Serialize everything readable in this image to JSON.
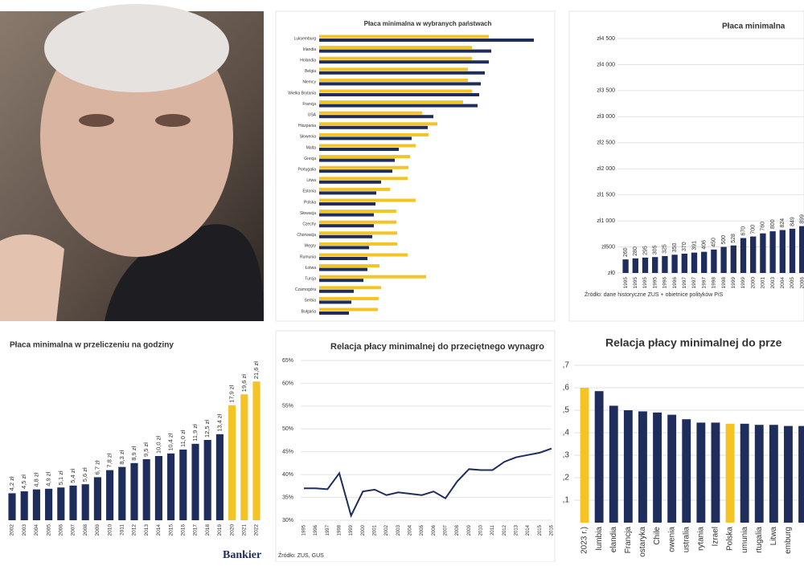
{
  "logo": "Bankier",
  "chart_data": [
    {
      "type": "bar",
      "horizontal": true,
      "title": "Płaca minimalna w wybranych państwach",
      "categories": [
        "Luksemburg",
        "Irlandia",
        "Holandia",
        "Belgia",
        "Niemcy",
        "Wielka Brytania",
        "Francja",
        "USA",
        "Hiszpania",
        "Słowenia",
        "Malta",
        "Grecja",
        "Portugalia",
        "Litwa",
        "Estonia",
        "Polska",
        "Słowacja",
        "Czechy",
        "Chorwacja",
        "Węgry",
        "Rumunia",
        "Łotwa",
        "Turcja",
        "Czarnogóra",
        "Serbia",
        "Bułgaria"
      ],
      "xlim": [
        0,
        323
      ],
      "series": [
        {
          "color": "#f5c324",
          "values": [
            211,
            190,
            190,
            185,
            185,
            190,
            179,
            128,
            147,
            136,
            120,
            113,
            111,
            110,
            88,
            120,
            96,
            96,
            97,
            97,
            110,
            75,
            133,
            77,
            74,
            73
          ]
        },
        {
          "color": "#1f2d5c",
          "values": [
            267,
            214,
            211,
            206,
            201,
            199,
            197,
            142,
            135,
            115,
            99,
            94,
            91,
            77,
            71,
            70,
            68,
            68,
            66,
            62,
            60,
            60,
            55,
            43,
            40,
            37
          ]
        }
      ]
    },
    {
      "type": "bar",
      "title": "Płaca minimalna",
      "source": "Źródło: dane historyczne ZUS + obietnice polityków PiS",
      "categories": [
        "1995",
        "1995",
        "1995",
        "1995",
        "1996",
        "1996",
        "1997",
        "1997",
        "1997",
        "1998",
        "1998",
        "1999",
        "1999",
        "2000",
        "2001",
        "2003",
        "2004",
        "2005",
        "2006"
      ],
      "values": [
        260,
        280,
        295,
        305,
        325,
        350,
        370,
        391,
        406,
        450,
        500,
        528,
        670,
        700,
        760,
        800,
        824,
        849,
        899
      ],
      "color": "#1f2d5c",
      "ylim": [
        0,
        4500
      ],
      "grid": true,
      "yticks": [
        {
          "value": 0,
          "label": "zł0"
        },
        {
          "value": 500,
          "label": "zł500"
        },
        {
          "value": 1000,
          "label": "zł1 000"
        },
        {
          "value": 1500,
          "label": "zł1 500"
        },
        {
          "value": 2000,
          "label": "zł2 000"
        },
        {
          "value": 2500,
          "label": "zł2 500"
        },
        {
          "value": 3000,
          "label": "zł3 000"
        },
        {
          "value": 3500,
          "label": "zł3 500"
        },
        {
          "value": 4000,
          "label": "zł4 000"
        },
        {
          "value": 4500,
          "label": "zł4 500"
        }
      ]
    },
    {
      "type": "bar",
      "title": "Płaca minimalna w przeliczeniu na godziny",
      "categories": [
        "2002",
        "2003",
        "2004",
        "2005",
        "2006",
        "2007",
        "2008",
        "2009",
        "2010",
        "2011",
        "2012",
        "2013",
        "2014",
        "2015",
        "2016",
        "2017",
        "2018",
        "2019",
        "2020",
        "2021",
        "2022"
      ],
      "values": [
        4.2,
        4.5,
        4.8,
        4.9,
        5.1,
        5.4,
        5.6,
        6.7,
        7.8,
        8.3,
        8.9,
        9.5,
        10.0,
        10.4,
        11.0,
        11.9,
        12.5,
        13.4,
        17.9,
        19.6,
        21.6
      ],
      "value_labels": [
        "4,2 zł",
        "4,5 zł",
        "4,8 zł",
        "4,9 zł",
        "5,1 zł",
        "5,4 zł",
        "5,6 zł",
        "6,7 zł",
        "7,8 zł",
        "8,3 zł",
        "8,9 zł",
        "9,5 zł",
        "10,0 zł",
        "10,4 zł",
        "11,0 zł",
        "11,9 zł",
        "12,5 zł",
        "13,4 zł",
        "17,9 zł",
        "19,6 zł",
        "21,6 zł"
      ],
      "colors": [
        "#1f2d5c",
        "#1f2d5c",
        "#1f2d5c",
        "#1f2d5c",
        "#1f2d5c",
        "#1f2d5c",
        "#1f2d5c",
        "#1f2d5c",
        "#1f2d5c",
        "#1f2d5c",
        "#1f2d5c",
        "#1f2d5c",
        "#1f2d5c",
        "#1f2d5c",
        "#1f2d5c",
        "#1f2d5c",
        "#1f2d5c",
        "#1f2d5c",
        "#f5c324",
        "#f5c324",
        "#f5c324"
      ],
      "ylim": [
        0,
        23
      ]
    },
    {
      "type": "line",
      "title": "Relacja płacy minimalnej do przeciętnego wynagro",
      "source": "Źródło: ZUS, GUS",
      "categories": [
        "1995",
        "1996",
        "1997",
        "1998",
        "1999",
        "2000",
        "2001",
        "2002",
        "2003",
        "2004",
        "2005",
        "2006",
        "2007",
        "2008",
        "2009",
        "2010",
        "2011",
        "2012",
        "2013",
        "2014",
        "2015",
        "2016"
      ],
      "values": [
        37,
        37,
        36.8,
        40.3,
        31,
        36.3,
        36.7,
        35.5,
        36.1,
        35.8,
        35.5,
        36.3,
        34.8,
        38.5,
        41.2,
        41,
        41,
        42.8,
        43.8,
        44.3,
        44.8,
        45.7
      ],
      "color": "#1f2d5c",
      "ylim": [
        30,
        65
      ],
      "grid": true,
      "yticks": [
        {
          "value": 30,
          "label": "30%"
        },
        {
          "value": 35,
          "label": "35%"
        },
        {
          "value": 40,
          "label": "40%"
        },
        {
          "value": 45,
          "label": "45%"
        },
        {
          "value": 50,
          "label": "50%"
        },
        {
          "value": 55,
          "label": "55%"
        },
        {
          "value": 60,
          "label": "60%"
        },
        {
          "value": 65,
          "label": "65%"
        }
      ]
    },
    {
      "type": "bar",
      "title": "Relacja płacy minimalnej do prze",
      "categories": [
        "2023 r.)",
        "lumbia",
        "elandia",
        "Francja",
        "ostaryka",
        "Chile",
        "owenia",
        "ustralia",
        "rytania",
        "Izrael",
        "Polska",
        "umunia",
        "rtugalia",
        "Litwa",
        "emburg",
        null
      ],
      "values": [
        0.6,
        0.585,
        0.52,
        0.5,
        0.495,
        0.49,
        0.48,
        0.46,
        0.445,
        0.445,
        0.44,
        0.44,
        0.435,
        0.435,
        0.43,
        0.43
      ],
      "colors": [
        "#f5c324",
        "#1f2d5c",
        "#1f2d5c",
        "#1f2d5c",
        "#1f2d5c",
        "#1f2d5c",
        "#1f2d5c",
        "#1f2d5c",
        "#1f2d5c",
        "#1f2d5c",
        "#f5c324",
        "#1f2d5c",
        "#1f2d5c",
        "#1f2d5c",
        "#1f2d5c",
        "#1f2d5c"
      ],
      "ylim": [
        0,
        0.7
      ],
      "grid": true,
      "yticks": [
        {
          "value": 0.1,
          "label": ",1"
        },
        {
          "value": 0.2,
          "label": ",2"
        },
        {
          "value": 0.3,
          "label": ",3"
        },
        {
          "value": 0.4,
          "label": ",4"
        },
        {
          "value": 0.5,
          "label": ",5"
        },
        {
          "value": 0.6,
          "label": ",6"
        },
        {
          "value": 0.7,
          "label": ",7"
        }
      ]
    }
  ]
}
